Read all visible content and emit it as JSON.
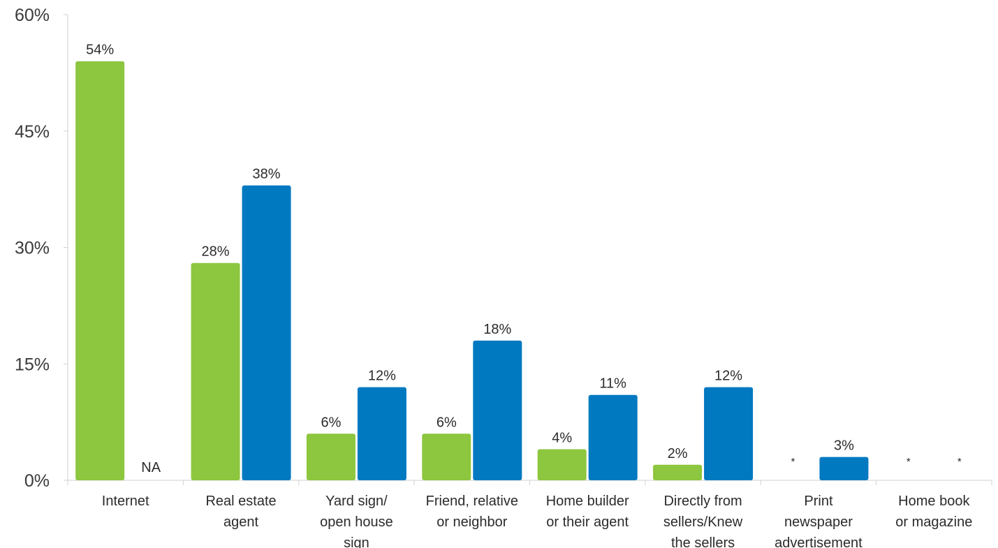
{
  "chart_data": {
    "type": "bar",
    "categories": [
      "Internet",
      "Real estate agent",
      "Yard sign/ open house sign",
      "Friend, relative or neighbor",
      "Home builder or their agent",
      "Directly from sellers/Knew the sellers",
      "Print newspaper advertisement",
      "Home book or magazine"
    ],
    "category_lines": [
      [
        "Internet"
      ],
      [
        "Real estate",
        "agent"
      ],
      [
        "Yard sign/",
        "open house",
        "sign"
      ],
      [
        "Friend, relative",
        "or neighbor"
      ],
      [
        "Home builder",
        "or their agent"
      ],
      [
        "Directly from",
        "sellers/Knew",
        "the sellers"
      ],
      [
        "Print",
        "newspaper",
        "advertisement"
      ],
      [
        "Home book",
        "or magazine"
      ]
    ],
    "series": [
      {
        "color": "#8dc63f",
        "values": [
          54,
          28,
          6,
          6,
          4,
          2,
          null,
          null
        ],
        "labels": [
          "54%",
          "28%",
          "6%",
          "6%",
          "4%",
          "2%",
          "*",
          "*"
        ]
      },
      {
        "color": "#0079c1",
        "values": [
          null,
          38,
          12,
          18,
          11,
          12,
          3,
          null
        ],
        "labels": [
          "NA",
          "38%",
          "12%",
          "18%",
          "11%",
          "12%",
          "3%",
          "*"
        ]
      }
    ],
    "ylim": [
      0,
      60
    ],
    "yticks": [
      0,
      15,
      30,
      45,
      60
    ],
    "ytick_labels": [
      "0%",
      "15%",
      "30%",
      "45%",
      "60%"
    ],
    "xlabel": "",
    "ylabel": "",
    "title": "",
    "grid": false,
    "legend": "none"
  }
}
